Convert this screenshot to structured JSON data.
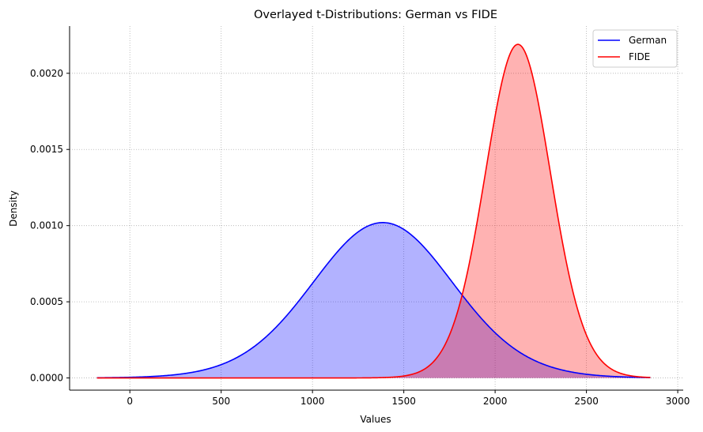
{
  "chart_data": {
    "type": "area",
    "title": "Overlayed t-Distributions: German vs FIDE",
    "xlabel": "Values",
    "ylabel": "Density",
    "xlim": [
      -330,
      3030
    ],
    "ylim": [
      -8e-05,
      0.00231
    ],
    "x_ticks": [
      0,
      500,
      1000,
      1500,
      2000,
      2500,
      3000
    ],
    "x_tick_labels": [
      "0",
      "500",
      "1000",
      "1500",
      "2000",
      "2500",
      "3000"
    ],
    "y_ticks": [
      0,
      0.0005,
      0.001,
      0.0015,
      0.002
    ],
    "y_tick_labels": [
      "0.0000",
      "0.0005",
      "0.0010",
      "0.0015",
      "0.0020"
    ],
    "grid": true,
    "legend_position": "upper-right",
    "x_range": [
      -180,
      2850
    ],
    "series": [
      {
        "name": "German",
        "color": "#0000ff",
        "fill_color": "#0000ff",
        "fill_opacity": 0.3,
        "distribution": "t",
        "location": 1385,
        "scale": 390,
        "df": 30,
        "peak_density": 0.00102
      },
      {
        "name": "FIDE",
        "color": "#ff0000",
        "fill_color": "#ff0000",
        "fill_opacity": 0.3,
        "distribution": "t",
        "location": 2125,
        "scale": 182,
        "df": 30,
        "peak_density": 0.00219
      }
    ]
  }
}
